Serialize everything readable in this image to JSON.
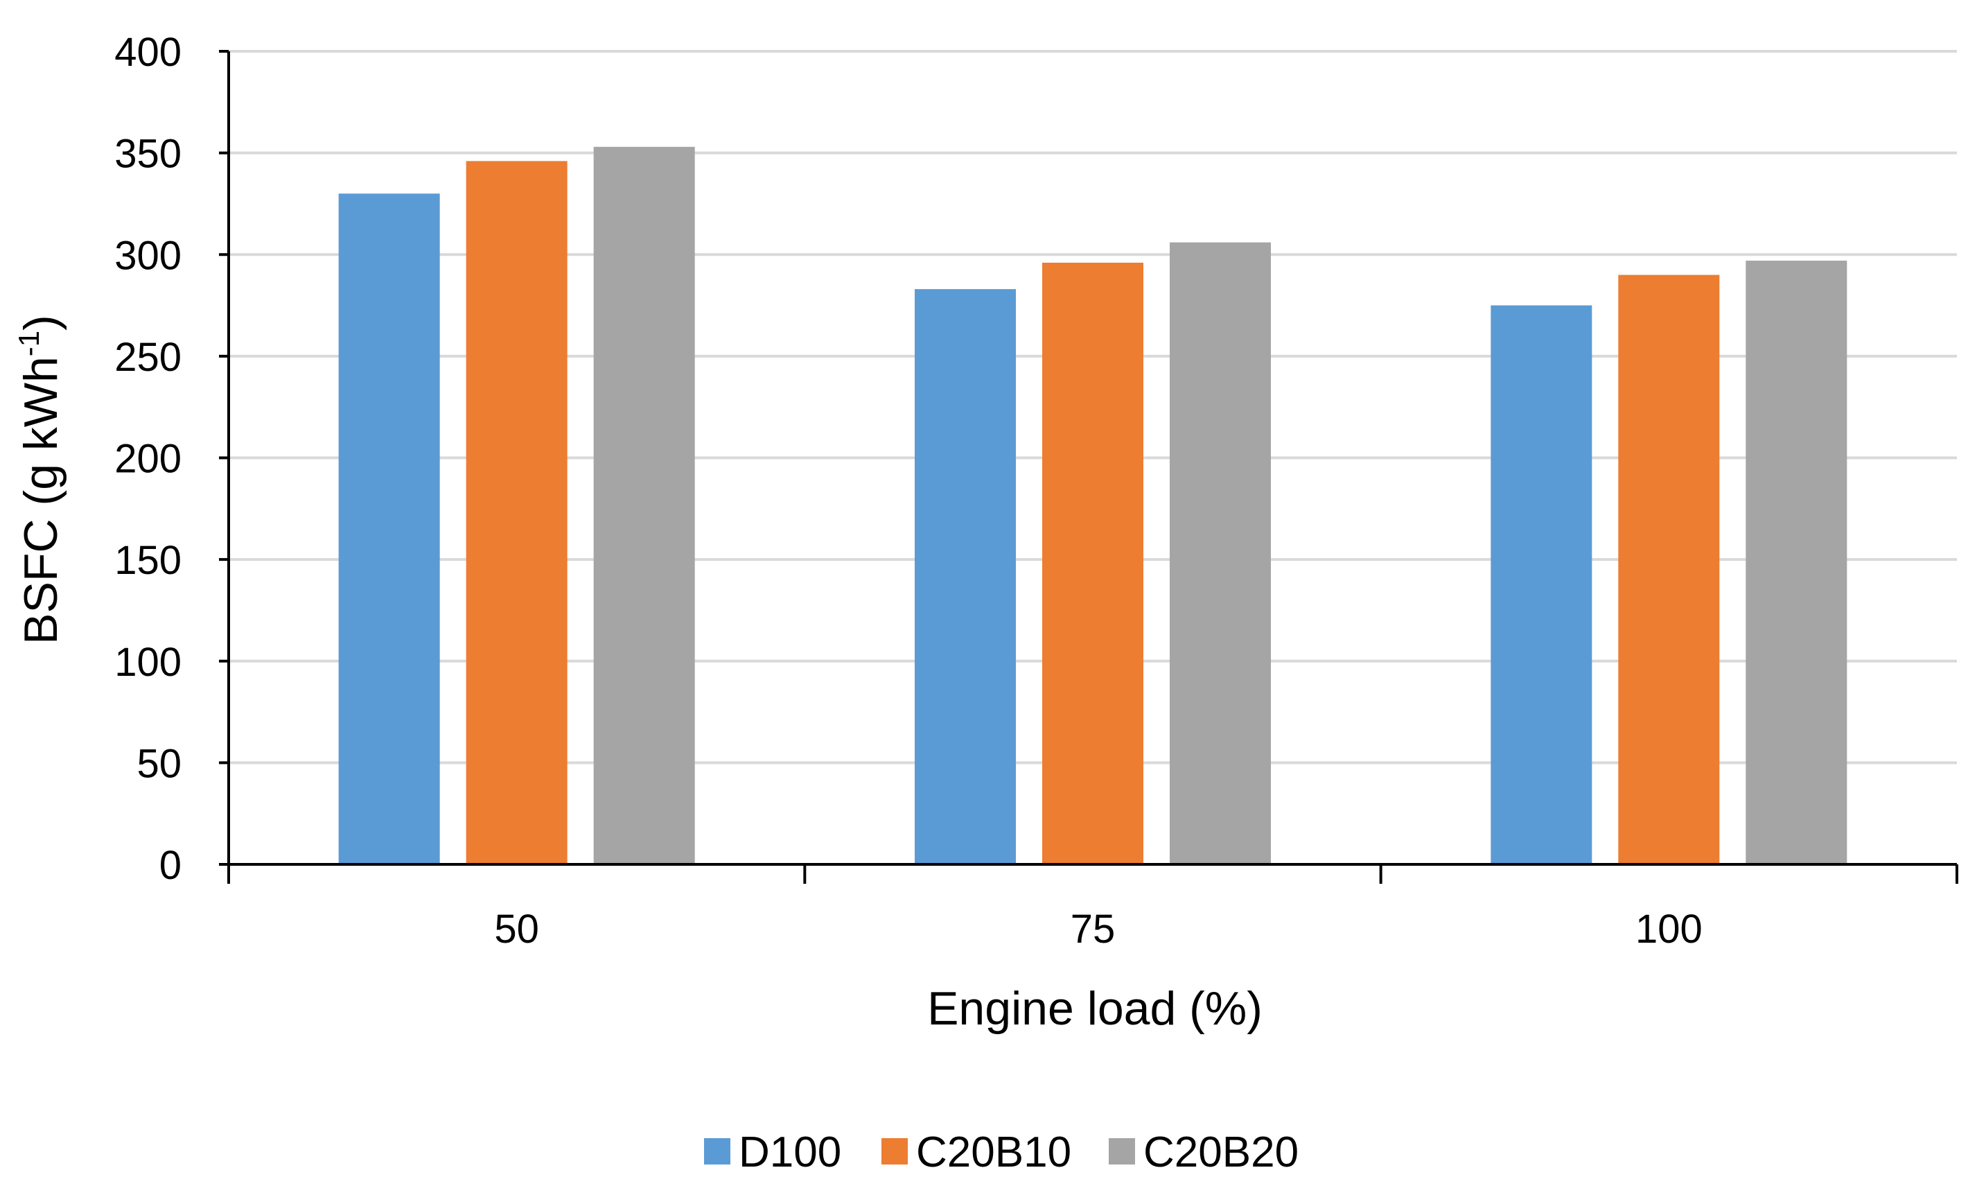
{
  "chart_data": {
    "type": "bar",
    "title": "",
    "xlabel": "Engine load (%)",
    "ylabel": "BSFC (g kWh",
    "ylabel_superscript": "-1",
    "ylabel_close": ")",
    "categories": [
      "50",
      "75",
      "100"
    ],
    "series": [
      {
        "name": "D100",
        "color": "#5B9BD5",
        "values": [
          330,
          283,
          275
        ]
      },
      {
        "name": "C20B10",
        "color": "#ED7D31",
        "values": [
          346,
          296,
          290
        ]
      },
      {
        "name": "C20B20",
        "color": "#A5A5A5",
        "values": [
          353,
          306,
          297
        ]
      }
    ],
    "ylim": [
      0,
      400
    ],
    "yticks": [
      "0",
      "50",
      "100",
      "150",
      "200",
      "250",
      "300",
      "350",
      "400"
    ],
    "grid": true,
    "legend_position": "bottom-center"
  }
}
